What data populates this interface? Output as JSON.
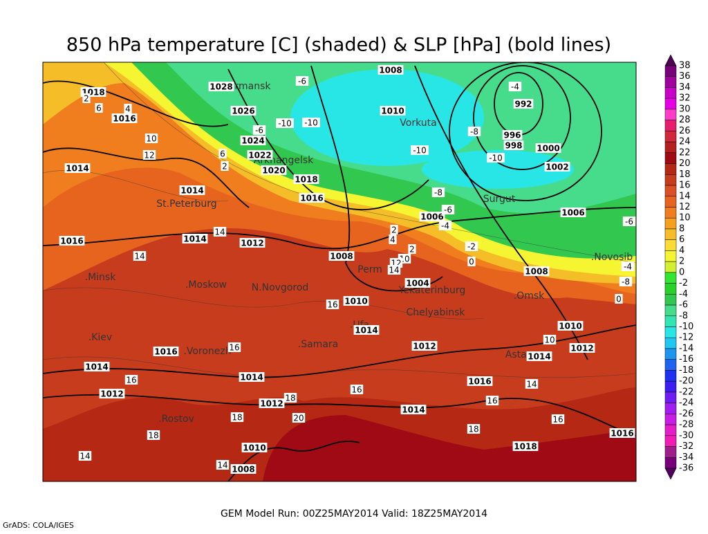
{
  "title": "850 hPa temperature [C] (shaded) & SLP [hPa] (bold lines)",
  "footer": "GEM Model Run: 00Z25MAY2014 Valid: 18Z25MAY2014",
  "credit": "GrADS: COLA/IGES",
  "colorbar": {
    "ticks": [
      38,
      36,
      34,
      32,
      30,
      28,
      26,
      24,
      22,
      20,
      18,
      16,
      14,
      12,
      10,
      8,
      6,
      4,
      2,
      0,
      -2,
      -4,
      -6,
      -8,
      -10,
      -12,
      -14,
      -16,
      -18,
      -20,
      -22,
      -24,
      -26,
      -28,
      -30,
      -32,
      -34,
      -36
    ],
    "colors": [
      "#4b0050",
      "#780078",
      "#a0009b",
      "#c800c8",
      "#e600e6",
      "#ff3cc8",
      "#e61e6e",
      "#d2283c",
      "#b41e1e",
      "#a00a14",
      "#b42814",
      "#c83c1e",
      "#dc5028",
      "#e6641e",
      "#f07d1e",
      "#f5a01e",
      "#f5be28",
      "#fadc32",
      "#f5f532",
      "#d2f032",
      "#32e632",
      "#28d228",
      "#32c850",
      "#46dc8c",
      "#32e6b4",
      "#28e6e6",
      "#1ec8f0",
      "#1e96f0",
      "#1e64f0",
      "#1e32f0",
      "#3c1ef0",
      "#6e1ef0",
      "#a01ef0",
      "#c81ee6",
      "#e61ec8",
      "#f01eb4",
      "#a01e8c",
      "#780078",
      "#50005a"
    ]
  },
  "cities": [
    "Murmansk",
    "Arkhangelsk",
    "Vorkuta",
    "Surgut",
    "St.Peterburg",
    ".Minsk",
    ".Moskow",
    "N.Novgorod",
    "Perm",
    "Yekaterinburg",
    ".Omsk",
    ".Novosib",
    "Chelyabinsk",
    ".Ufa",
    ".Samara",
    ".Kiev",
    ".Voronezh",
    "Astana",
    ".Rostov"
  ],
  "isobar_labels": [
    1008,
    1028,
    1026,
    1010,
    992,
    996,
    998,
    1000,
    1002,
    1024,
    1022,
    1020,
    1018,
    1016,
    1014,
    1014,
    1016,
    1018,
    1016,
    1014,
    1012,
    1008,
    1006,
    1004,
    1010,
    1014,
    1012,
    1008,
    1006,
    1010,
    1012,
    1014,
    1016,
    1014,
    1012,
    1014,
    1012,
    1014,
    1016,
    1016,
    1018,
    1010,
    1008
  ],
  "temperature_labels": [
    -6,
    -4,
    -10,
    -10,
    -10,
    -10,
    -8,
    -8,
    -6,
    -4,
    -6,
    -4,
    -8,
    0,
    -2,
    0,
    2,
    4,
    2,
    10,
    12,
    14,
    14,
    14,
    16,
    16,
    16,
    16,
    18,
    18,
    20,
    16,
    14,
    16,
    18,
    18,
    14,
    14,
    10,
    6,
    4,
    10,
    12,
    2,
    2,
    6,
    -6
  ]
}
